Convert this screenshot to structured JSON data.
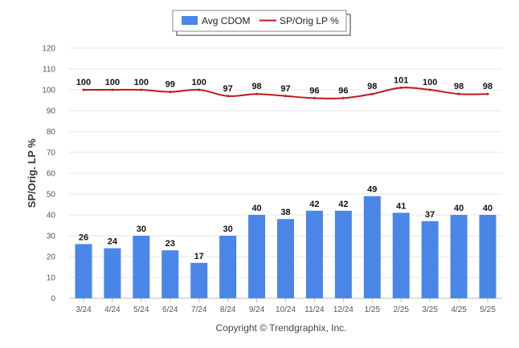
{
  "chart_data": {
    "type": "bar",
    "categories": [
      "3/24",
      "4/24",
      "5/24",
      "6/24",
      "7/24",
      "8/24",
      "9/24",
      "10/24",
      "11/24",
      "12/24",
      "1/25",
      "2/25",
      "3/25",
      "4/25",
      "5/25"
    ],
    "series": [
      {
        "name": "Avg CDOM",
        "type": "bar",
        "color": "#4a86e8",
        "values": [
          26,
          24,
          30,
          23,
          17,
          30,
          40,
          38,
          42,
          42,
          49,
          41,
          37,
          40,
          40
        ]
      },
      {
        "name": "SP/Orig LP %",
        "type": "line",
        "color": "#c0171b",
        "values": [
          100,
          100,
          100,
          99,
          100,
          97,
          98,
          97,
          96,
          96,
          98,
          101,
          100,
          98,
          98
        ]
      }
    ],
    "ylabel": "SP/Orig. LP %",
    "ylim": [
      0,
      120
    ],
    "yticks": [
      0,
      10,
      20,
      30,
      40,
      50,
      60,
      70,
      80,
      90,
      100,
      110,
      120
    ],
    "grid": true,
    "legend_position": "top-center",
    "credit": "Copyright © Trendgraphix, Inc."
  }
}
